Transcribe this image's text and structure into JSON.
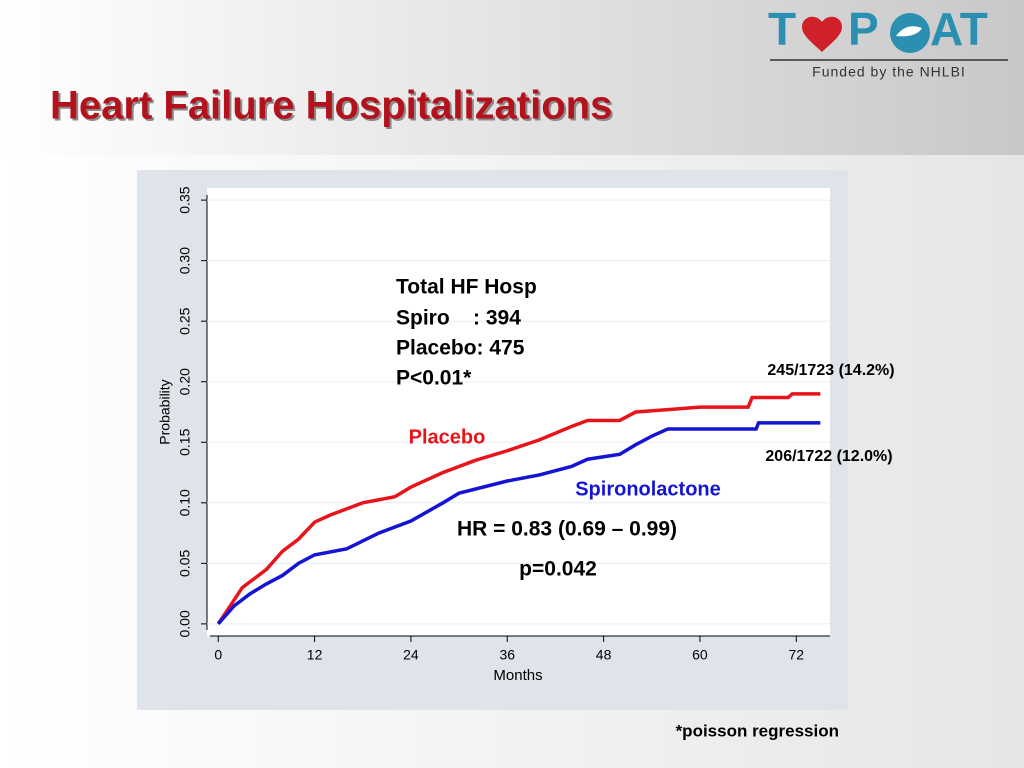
{
  "slide": {
    "title": "Heart Failure Hospitalizations",
    "logo": [
      "T",
      "P",
      "AT"
    ],
    "funding": "Funded by the NHLBI",
    "footnote": "*poisson regression"
  },
  "chart_data": {
    "type": "line",
    "xlabel": "Months",
    "ylabel": "Probability",
    "xlim": [
      -1.4,
      76.2
    ],
    "ylim": [
      -0.01,
      0.36
    ],
    "xticks": [
      0,
      12,
      24,
      36,
      48,
      60,
      72
    ],
    "yticks": [
      {
        "value": 0,
        "label": "0.00"
      },
      {
        "value": 0.05,
        "label": "0.05"
      },
      {
        "value": 0.1,
        "label": "0.10"
      },
      {
        "value": 0.15,
        "label": "0.15"
      },
      {
        "value": 0.2,
        "label": "0.20"
      },
      {
        "value": 0.25,
        "label": "0.25"
      },
      {
        "value": 0.3,
        "label": "0.30"
      },
      {
        "value": 0.35,
        "label": "0.35"
      }
    ],
    "series": [
      {
        "name": "Placebo",
        "color": "#e8141c",
        "x": [
          0,
          1,
          2,
          3,
          4,
          6,
          8,
          10,
          12,
          14,
          18,
          22,
          24,
          28,
          32,
          36,
          40,
          44,
          46,
          50,
          52,
          56,
          60,
          66,
          66.5,
          71,
          71.5,
          75
        ],
        "values": [
          0,
          0.01,
          0.02,
          0.03,
          0.035,
          0.045,
          0.06,
          0.07,
          0.084,
          0.09,
          0.1,
          0.105,
          0.113,
          0.125,
          0.135,
          0.143,
          0.152,
          0.163,
          0.168,
          0.168,
          0.175,
          0.177,
          0.179,
          0.179,
          0.187,
          0.187,
          0.19,
          0.19
        ]
      },
      {
        "name": "Spironolactone",
        "color": "#1414d2",
        "x": [
          0,
          2,
          4,
          6,
          8,
          10,
          12,
          16,
          20,
          24,
          28,
          30,
          36,
          40,
          44,
          46,
          50,
          52,
          54,
          56,
          60,
          67,
          67.3,
          75
        ],
        "values": [
          0,
          0.015,
          0.025,
          0.033,
          0.04,
          0.05,
          0.057,
          0.062,
          0.075,
          0.085,
          0.1,
          0.108,
          0.118,
          0.123,
          0.13,
          0.136,
          0.14,
          0.148,
          0.155,
          0.161,
          0.161,
          0.161,
          0.166,
          0.166
        ]
      }
    ],
    "annotations": [
      "Total HF Hosp",
      "Spiro    : 394",
      "Placebo: 475",
      "P<0.01*",
      "245/1723 (14.2%)",
      "206/1722 (12.0%)",
      "HR = 0.83 (0.69 – 0.99)",
      "p=0.042"
    ]
  }
}
